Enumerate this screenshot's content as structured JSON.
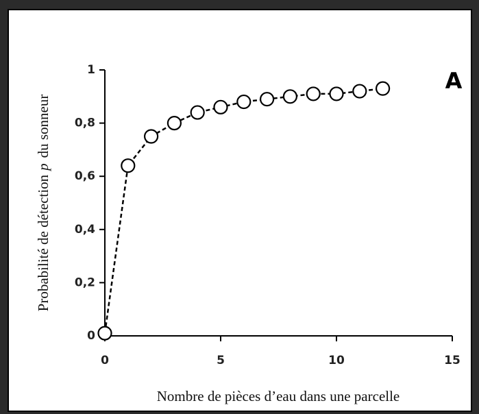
{
  "chart_data": {
    "type": "line",
    "xlabel": "Nombre de pièces d’eau dans une parcelle",
    "ylabel": [
      "Probabilité de détection",
      "p",
      "du sonneur"
    ],
    "annotation": "A",
    "x": [
      0,
      1,
      2,
      3,
      4,
      5,
      6,
      7,
      8,
      9,
      10,
      11,
      12
    ],
    "series": [
      {
        "color": "#000000",
        "values": [
          0.01,
          0.64,
          0.75,
          0.8,
          0.84,
          0.86,
          0.88,
          0.89,
          0.9,
          0.91,
          0.91,
          0.92,
          0.93
        ]
      }
    ],
    "xlim": [
      0,
      15
    ],
    "xticks": [
      0,
      5,
      10,
      15
    ],
    "ylim": [
      0,
      1
    ],
    "yticks": [
      0,
      {
        "value": 0.2,
        "label": "0,2"
      },
      {
        "value": 0.4,
        "label": "0,4"
      },
      {
        "value": 0.6,
        "label": "0,6"
      },
      {
        "value": 0.8,
        "label": "0,8"
      },
      1
    ],
    "grid": false,
    "dashed": true
  }
}
